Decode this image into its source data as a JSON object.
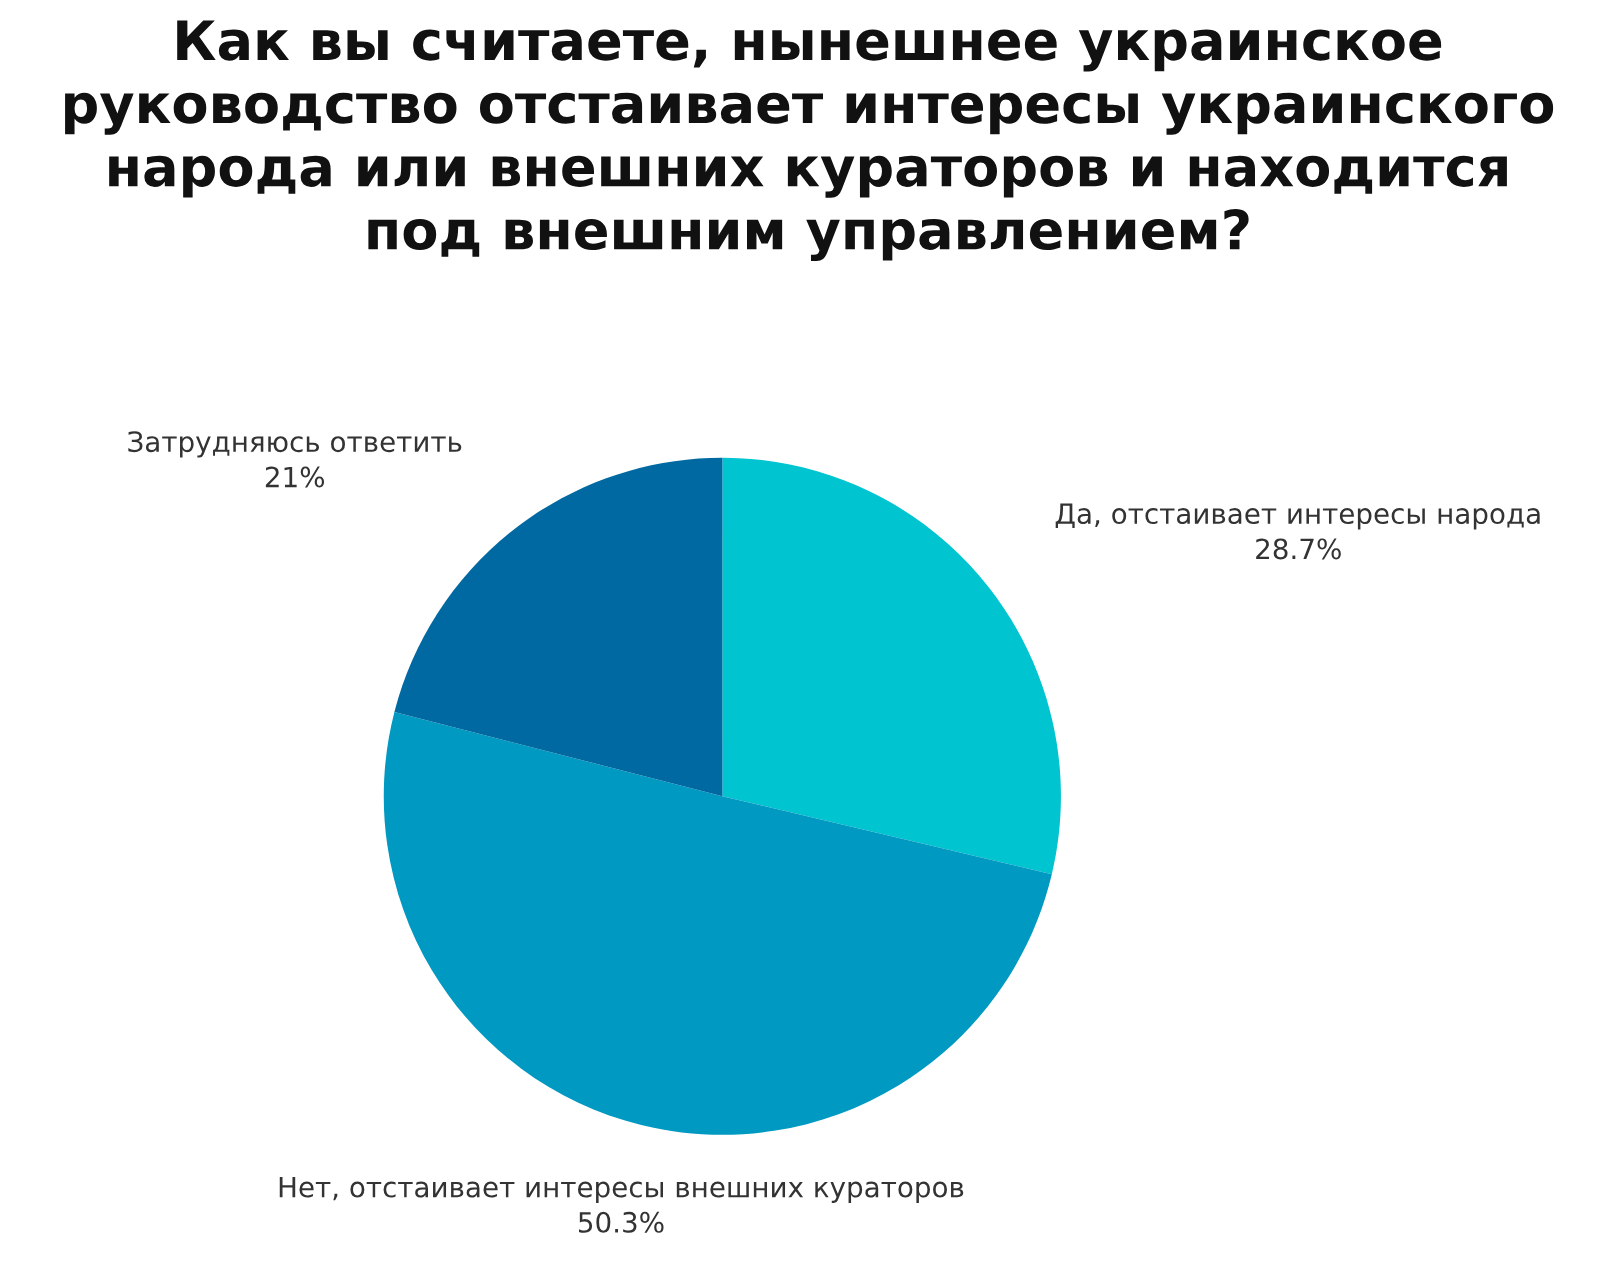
{
  "chart_data": {
    "type": "pie",
    "title": "Как вы считаете, нынешнее украинское\nруководство отстаивает интересы украинского\nнарода или внешних кураторов и находится\nпод внешним управлением?",
    "categories": [
      "Да, отстаивает интересы народа",
      "Нет, отстаивает интересы внешних кураторов",
      "Затрудняюсь ответить"
    ],
    "values": [
      28.7,
      50.3,
      21
    ],
    "value_labels": [
      "28.7%",
      "50.3%",
      "21%"
    ],
    "colors": [
      "#00c4cf",
      "#0099c2",
      "#0069a1"
    ],
    "legend": false
  }
}
